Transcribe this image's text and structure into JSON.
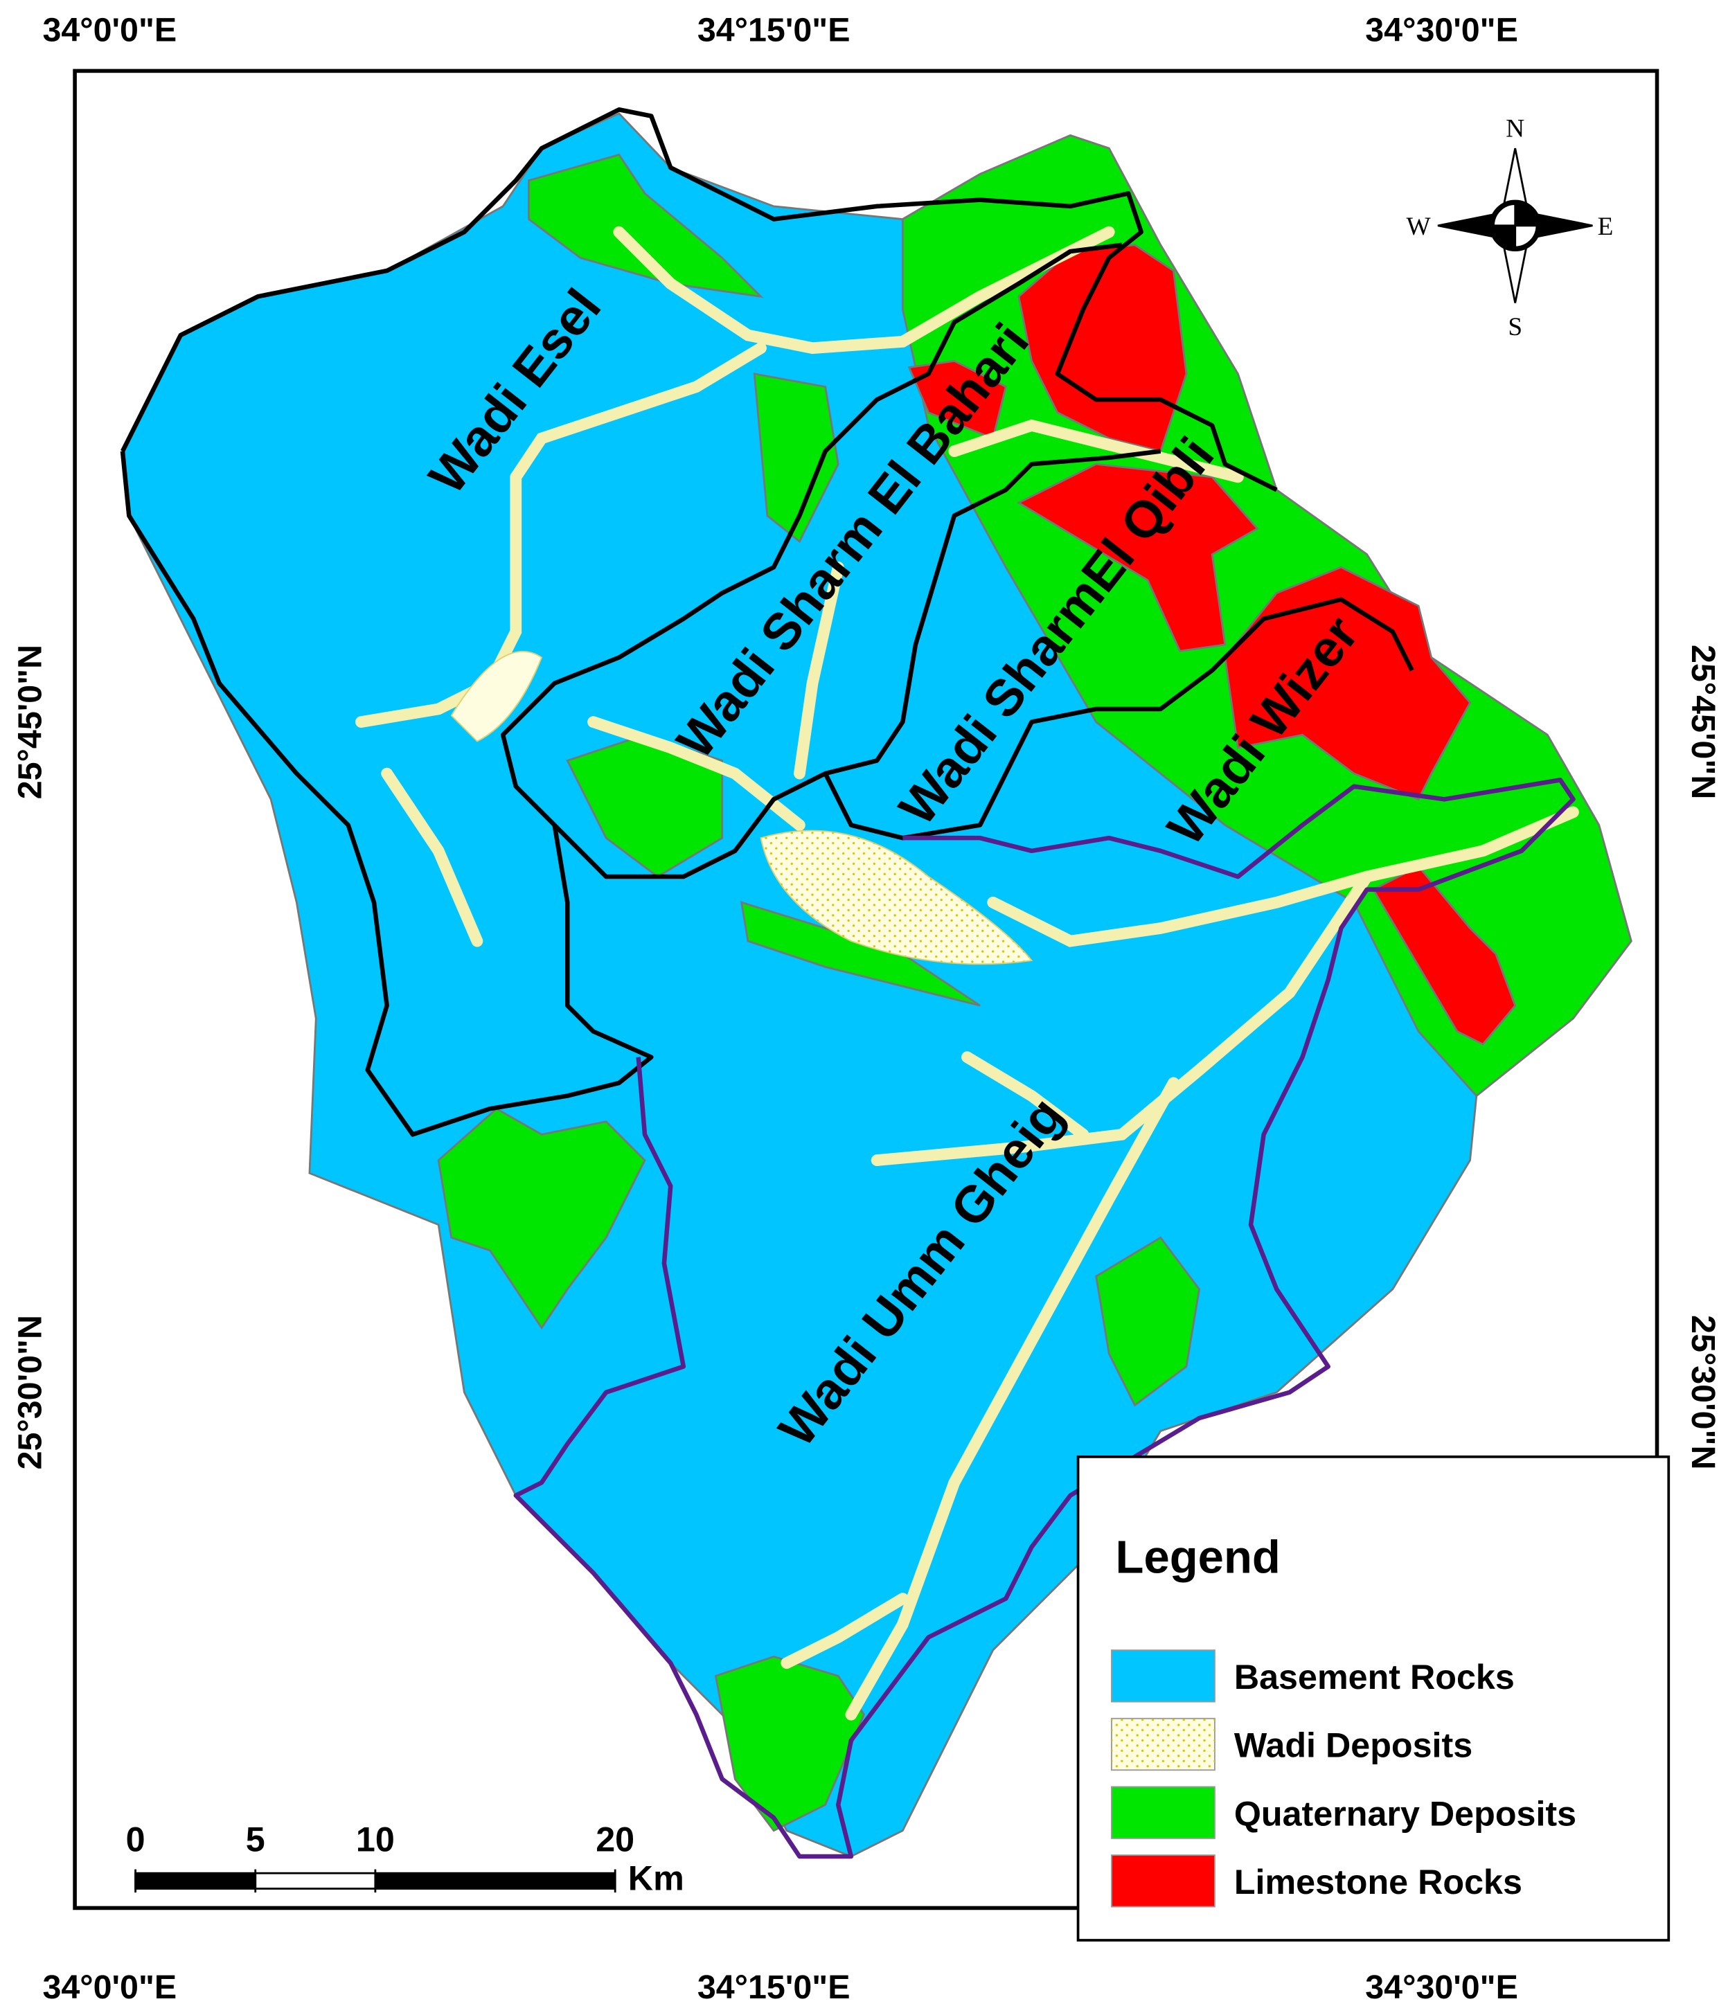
{
  "map": {
    "top_labels": [
      "34°0'0\"E",
      "34°15'0\"E",
      "34°30'0\"E"
    ],
    "bottom_labels": [
      "34°0'0\"E",
      "34°15'0\"E",
      "34°30'0\"E"
    ],
    "left_labels": [
      "25°45'0\"N",
      "25°30'0\"N"
    ],
    "right_labels": [
      "25°45'0\"N",
      "25°30'0\"N"
    ],
    "basins": [
      "Wadi Esel",
      "Wadi Sharm El Bahari",
      "Wadi SharmEl Qibli",
      "Wadi Wizer",
      "Wadi Umm Gheig"
    ],
    "compass": {
      "n": "N",
      "s": "S",
      "w": "W",
      "e": "E"
    },
    "legend": {
      "title": "Legend",
      "items": [
        {
          "label": "Basement Rocks",
          "color": "#00c5ff"
        },
        {
          "label": "Wadi Deposits",
          "color": "#fffde0"
        },
        {
          "label": "Quaternary Deposits",
          "color": "#00e600"
        },
        {
          "label": "Limestone Rocks",
          "color": "#ff0000"
        }
      ]
    },
    "scale": {
      "ticks": [
        0,
        5,
        10,
        20
      ],
      "unit": "Km"
    }
  }
}
